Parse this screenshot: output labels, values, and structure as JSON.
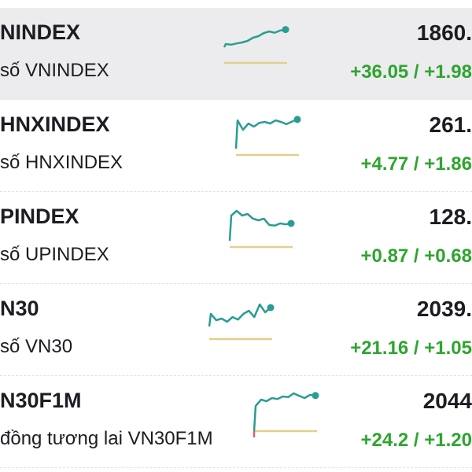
{
  "colors": {
    "up": "#2fa52f",
    "line": "#2a9d93",
    "baseline": "#e3cf8a",
    "selected_bg": "#ececef",
    "down_tick": "#e0606a"
  },
  "rows": [
    {
      "symbol": "NINDEX",
      "name": "số VNINDEX",
      "price": "1860.",
      "change": "+36.05 / +1.98",
      "selected": true,
      "spark": [
        3,
        4,
        3.8,
        4.2,
        4.5,
        5,
        6,
        6.5,
        7.5,
        8,
        7.6,
        8.3,
        8.6
      ]
    },
    {
      "symbol": "HNXINDEX",
      "name": "số HNXINDEX",
      "price": "261.",
      "change": "+4.77 / +1.86",
      "selected": false,
      "spark": [
        0,
        9,
        6,
        8,
        7,
        8.2,
        8.5,
        8,
        9,
        8.5,
        7.8,
        8.6,
        9.3
      ]
    },
    {
      "symbol": "PINDEX",
      "name": "số UPINDEX",
      "price": "128.",
      "change": "+0.87 / +0.68",
      "selected": false,
      "spark": [
        0,
        8,
        9.5,
        8,
        8.5,
        7,
        6.5,
        7,
        5,
        4.8,
        5.5,
        5.2,
        5.5
      ]
    },
    {
      "symbol": "N30",
      "name": "số VN30",
      "price": "2039.",
      "change": "+21.16 / +1.05",
      "selected": false,
      "spark": [
        2,
        6,
        4,
        4.5,
        3.5,
        5,
        4.2,
        6,
        7,
        5,
        9,
        6.5,
        8
      ]
    },
    {
      "symbol": "N30F1M",
      "name": "đồng tương lai VN30F1M",
      "price": "2044",
      "change": "+24.2 / +1.20",
      "selected": false,
      "spark": [
        -2,
        6,
        8,
        7.5,
        8.5,
        8.2,
        9,
        8.8,
        10,
        9.2,
        8.5,
        9.5,
        9.3
      ]
    }
  ]
}
